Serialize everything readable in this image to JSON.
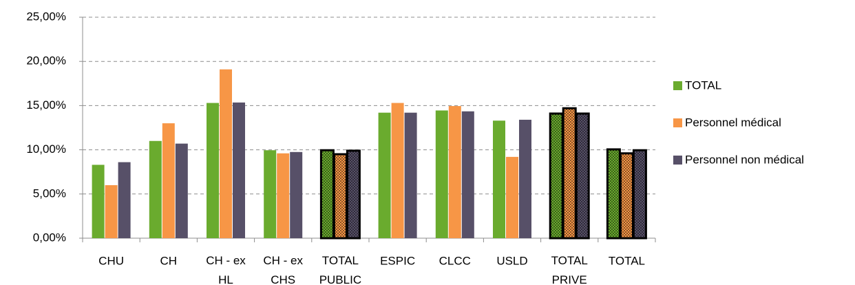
{
  "chart_data": {
    "type": "bar",
    "categories": [
      "CHU",
      "CH",
      "CH - ex\nHL",
      "CH - ex\nCHS",
      "TOTAL\nPUBLIC",
      "ESPIC",
      "CLCC",
      "USLD",
      "TOTAL\nPRIVE",
      "TOTAL"
    ],
    "series": [
      {
        "name": "TOTAL",
        "color": "#6aab2e",
        "values": [
          8.3,
          11.0,
          15.3,
          9.95,
          9.95,
          14.2,
          14.45,
          13.3,
          14.1,
          10.05
        ]
      },
      {
        "name": "Personnel médical",
        "color": "#f79646",
        "values": [
          6.0,
          13.0,
          19.1,
          9.6,
          9.5,
          15.3,
          14.95,
          9.2,
          14.7,
          9.6
        ]
      },
      {
        "name": "Personnel non médical",
        "color": "#575068",
        "values": [
          8.6,
          10.7,
          15.35,
          9.75,
          9.9,
          14.2,
          14.35,
          13.4,
          14.1,
          9.95
        ]
      }
    ],
    "ylim": [
      0,
      25
    ],
    "yticks": [
      {
        "value": 0,
        "label": "0,00%"
      },
      {
        "value": 5,
        "label": "5,00%"
      },
      {
        "value": 10,
        "label": "10,00%"
      },
      {
        "value": 15,
        "label": "15,00%"
      },
      {
        "value": 20,
        "label": "20,00%"
      },
      {
        "value": 25,
        "label": "25,00%"
      }
    ],
    "grid": true,
    "legend": "right",
    "highlighted_categories": [
      4,
      8,
      9
    ]
  }
}
